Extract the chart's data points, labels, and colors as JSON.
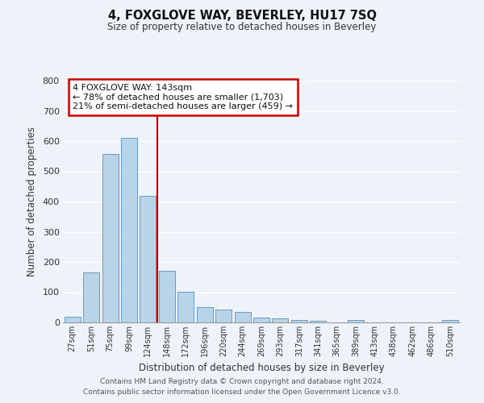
{
  "title": "4, FOXGLOVE WAY, BEVERLEY, HU17 7SQ",
  "subtitle": "Size of property relative to detached houses in Beverley",
  "xlabel": "Distribution of detached houses by size in Beverley",
  "ylabel": "Number of detached properties",
  "bar_labels": [
    "27sqm",
    "51sqm",
    "75sqm",
    "99sqm",
    "124sqm",
    "148sqm",
    "172sqm",
    "196sqm",
    "220sqm",
    "244sqm",
    "269sqm",
    "293sqm",
    "317sqm",
    "341sqm",
    "365sqm",
    "389sqm",
    "413sqm",
    "438sqm",
    "462sqm",
    "486sqm",
    "510sqm"
  ],
  "bar_values": [
    20,
    165,
    558,
    612,
    418,
    170,
    101,
    52,
    42,
    35,
    15,
    14,
    9,
    6,
    0,
    8,
    0,
    0,
    0,
    0,
    8
  ],
  "bar_color": "#b8d4e8",
  "bar_edge_color": "#5a8fbf",
  "bg_color": "#eef2f9",
  "grid_color": "#ffffff",
  "vline_color": "#cc0000",
  "annotation_line1": "4 FOXGLOVE WAY: 143sqm",
  "annotation_line2": "← 78% of detached houses are smaller (1,703)",
  "annotation_line3": "21% of semi-detached houses are larger (459) →",
  "annotation_box_color": "#ffffff",
  "annotation_box_edge": "#cc0000",
  "footer1": "Contains HM Land Registry data © Crown copyright and database right 2024.",
  "footer2": "Contains public sector information licensed under the Open Government Licence v3.0.",
  "ylim": [
    0,
    800
  ],
  "yticks": [
    0,
    100,
    200,
    300,
    400,
    500,
    600,
    700,
    800
  ]
}
